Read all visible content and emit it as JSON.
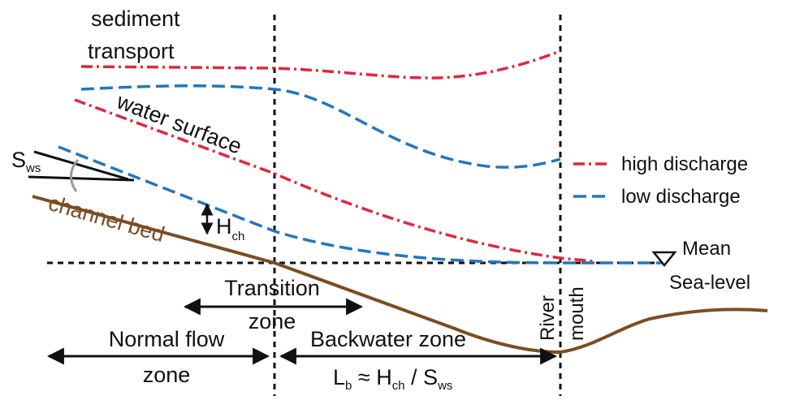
{
  "labels": {
    "sediment_line1": "sediment",
    "sediment_line2": "transport",
    "water_surface": "water surface",
    "channel_bed": "channel bed",
    "slope_main": "S",
    "slope_sub": "ws",
    "depth_main": "H",
    "depth_sub": "ch",
    "sea_line1": "Mean",
    "sea_line2": "Sea-level",
    "river_mouth_line1": "River",
    "river_mouth_line2": "mouth",
    "transition_line1": "Transition",
    "transition_line2": "zone",
    "normal_line1": "Normal flow",
    "normal_line2": "zone",
    "backwater": "Backwater zone",
    "formula_l": "L",
    "formula_l_sub": "b",
    "formula_mid": " ≈ H",
    "formula_h_sub": "ch",
    "formula_div": " / S",
    "formula_s_sub": "ws"
  },
  "legend": {
    "high": "high discharge",
    "low": "low discharge"
  },
  "colors": {
    "high_discharge": "#e0283c",
    "low_discharge": "#2277c0",
    "channel_bed": "#7a4e22",
    "guides": "#111111",
    "slope_arc": "#9a9a9a"
  }
}
